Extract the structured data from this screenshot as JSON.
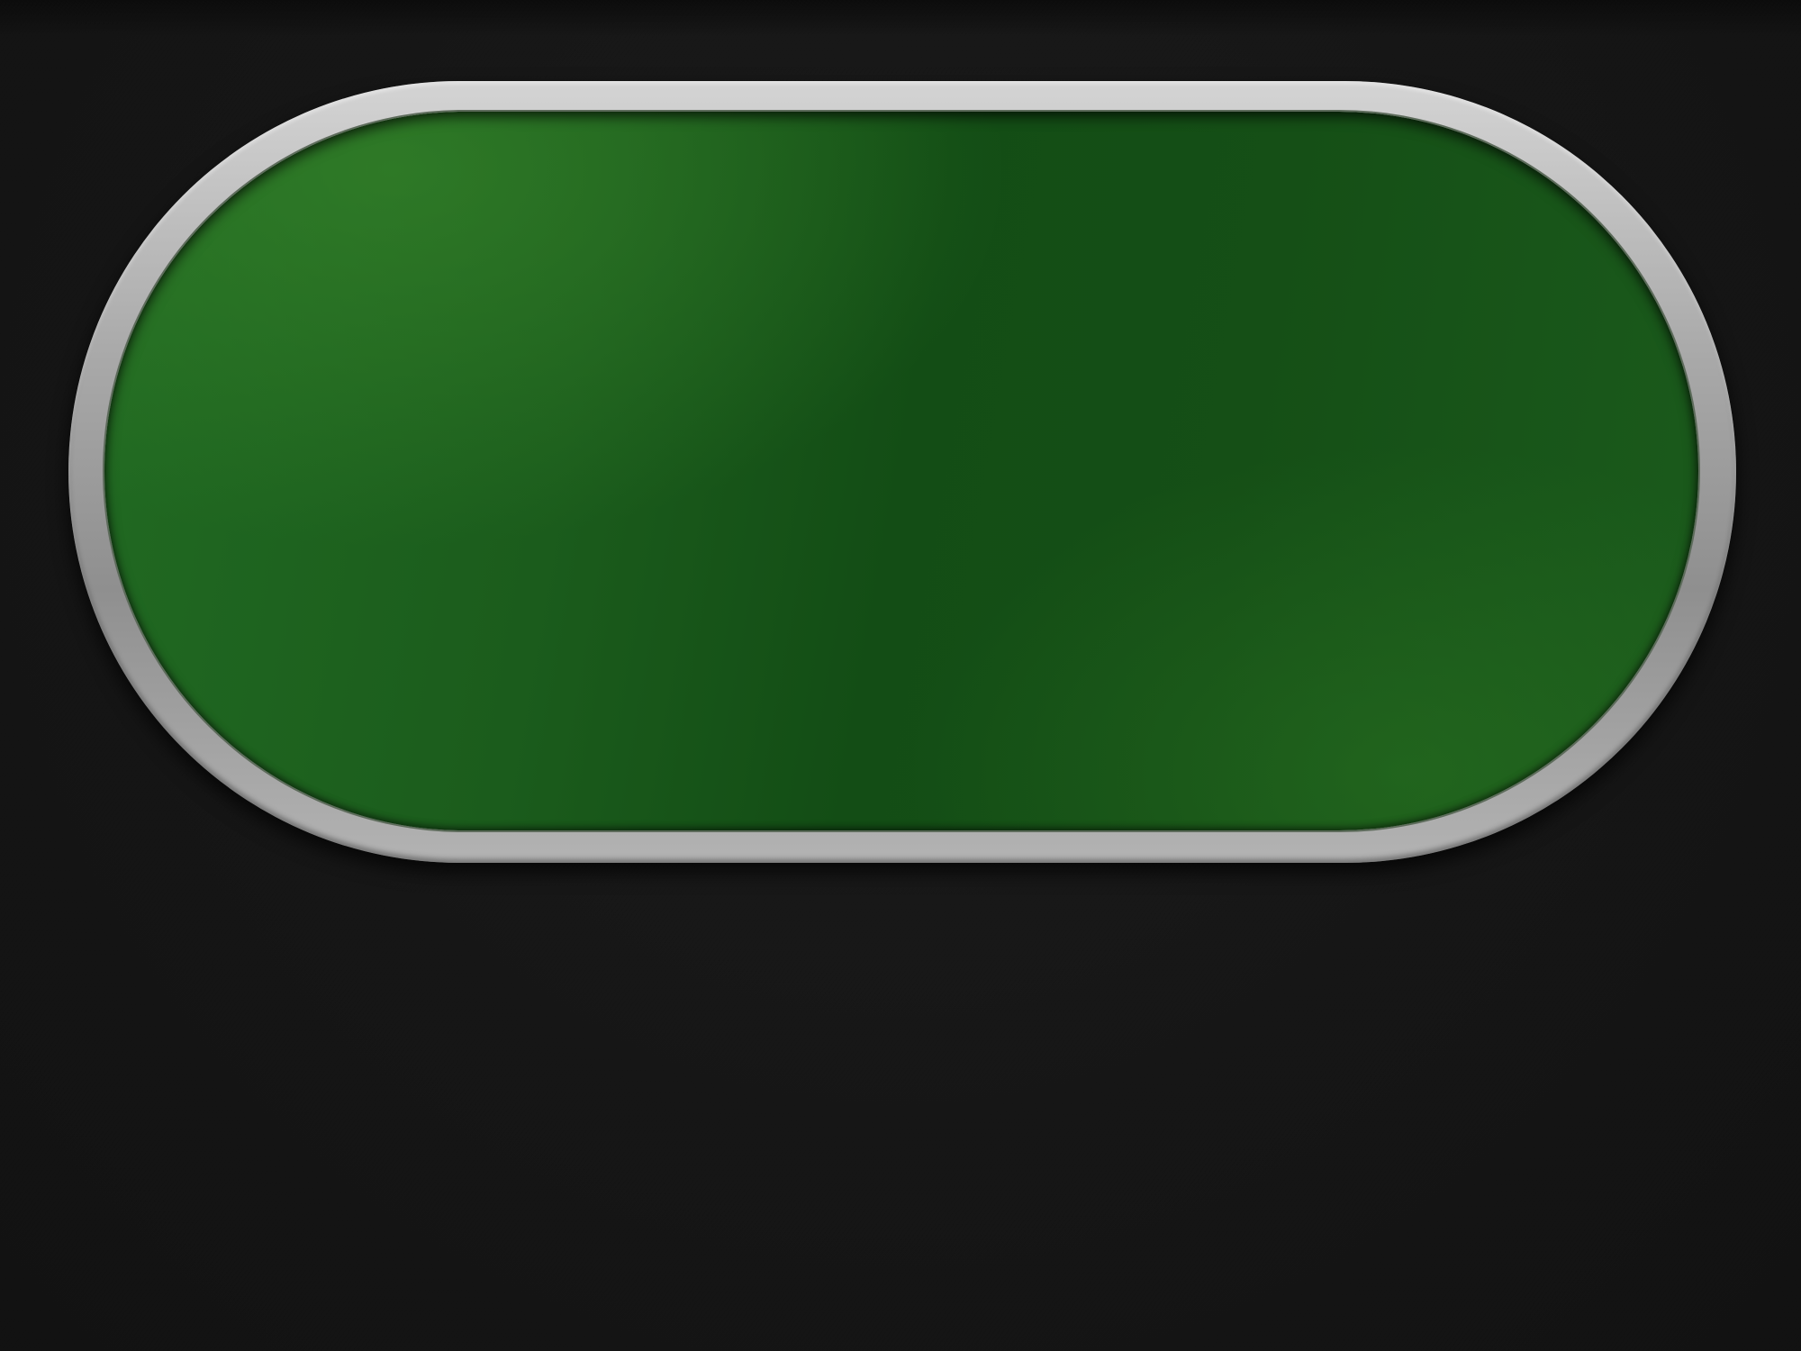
{
  "table": {
    "felt_color": "#1a5a1b",
    "rail_color": "#a9a9a9",
    "background_color": "#161616"
  }
}
